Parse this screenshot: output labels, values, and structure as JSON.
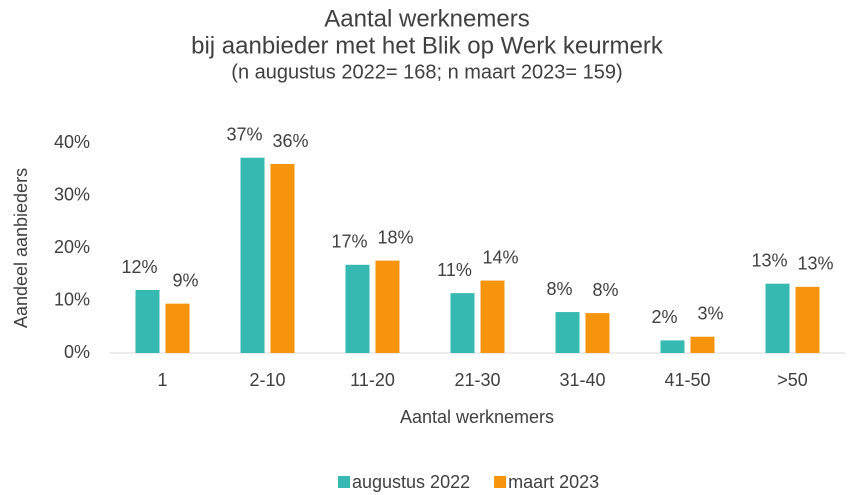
{
  "chart_data": {
    "type": "bar",
    "title": "Aantal werknemers",
    "subtitle": "bij aanbieder met het Blik op Werk keurmerk",
    "note": "(n augustus 2022= 168; n maart 2023= 159)",
    "x_label": "Aantal werknemers",
    "y_label": "Aandeel aanbieders",
    "categories": [
      "1",
      "2-10",
      "11-20",
      "21-30",
      "31-40",
      "41-50",
      ">50"
    ],
    "series": [
      {
        "name": "augustus 2022",
        "color": "#35b9b1",
        "values": [
          12,
          37.2,
          16.8,
          11.4,
          7.8,
          2.4,
          13.2
        ],
        "value_labels": [
          "12%",
          "37%",
          "17%",
          "11%",
          "8%",
          "2%",
          "13%"
        ]
      },
      {
        "name": "maart 2023",
        "color": "#f7940e",
        "values": [
          9.4,
          36,
          17.6,
          13.8,
          7.6,
          3.1,
          12.6
        ],
        "value_labels": [
          "9%",
          "36%",
          "18%",
          "14%",
          "8%",
          "3%",
          "13%"
        ]
      }
    ],
    "ylim": [
      0,
      40
    ],
    "yticks": [
      {
        "value": 0,
        "label": "0%"
      },
      {
        "value": 10,
        "label": "10%"
      },
      {
        "value": 20,
        "label": "20%"
      },
      {
        "value": 30,
        "label": "30%"
      },
      {
        "value": 40,
        "label": "40%"
      }
    ],
    "grid": false,
    "legend": "bottom"
  }
}
